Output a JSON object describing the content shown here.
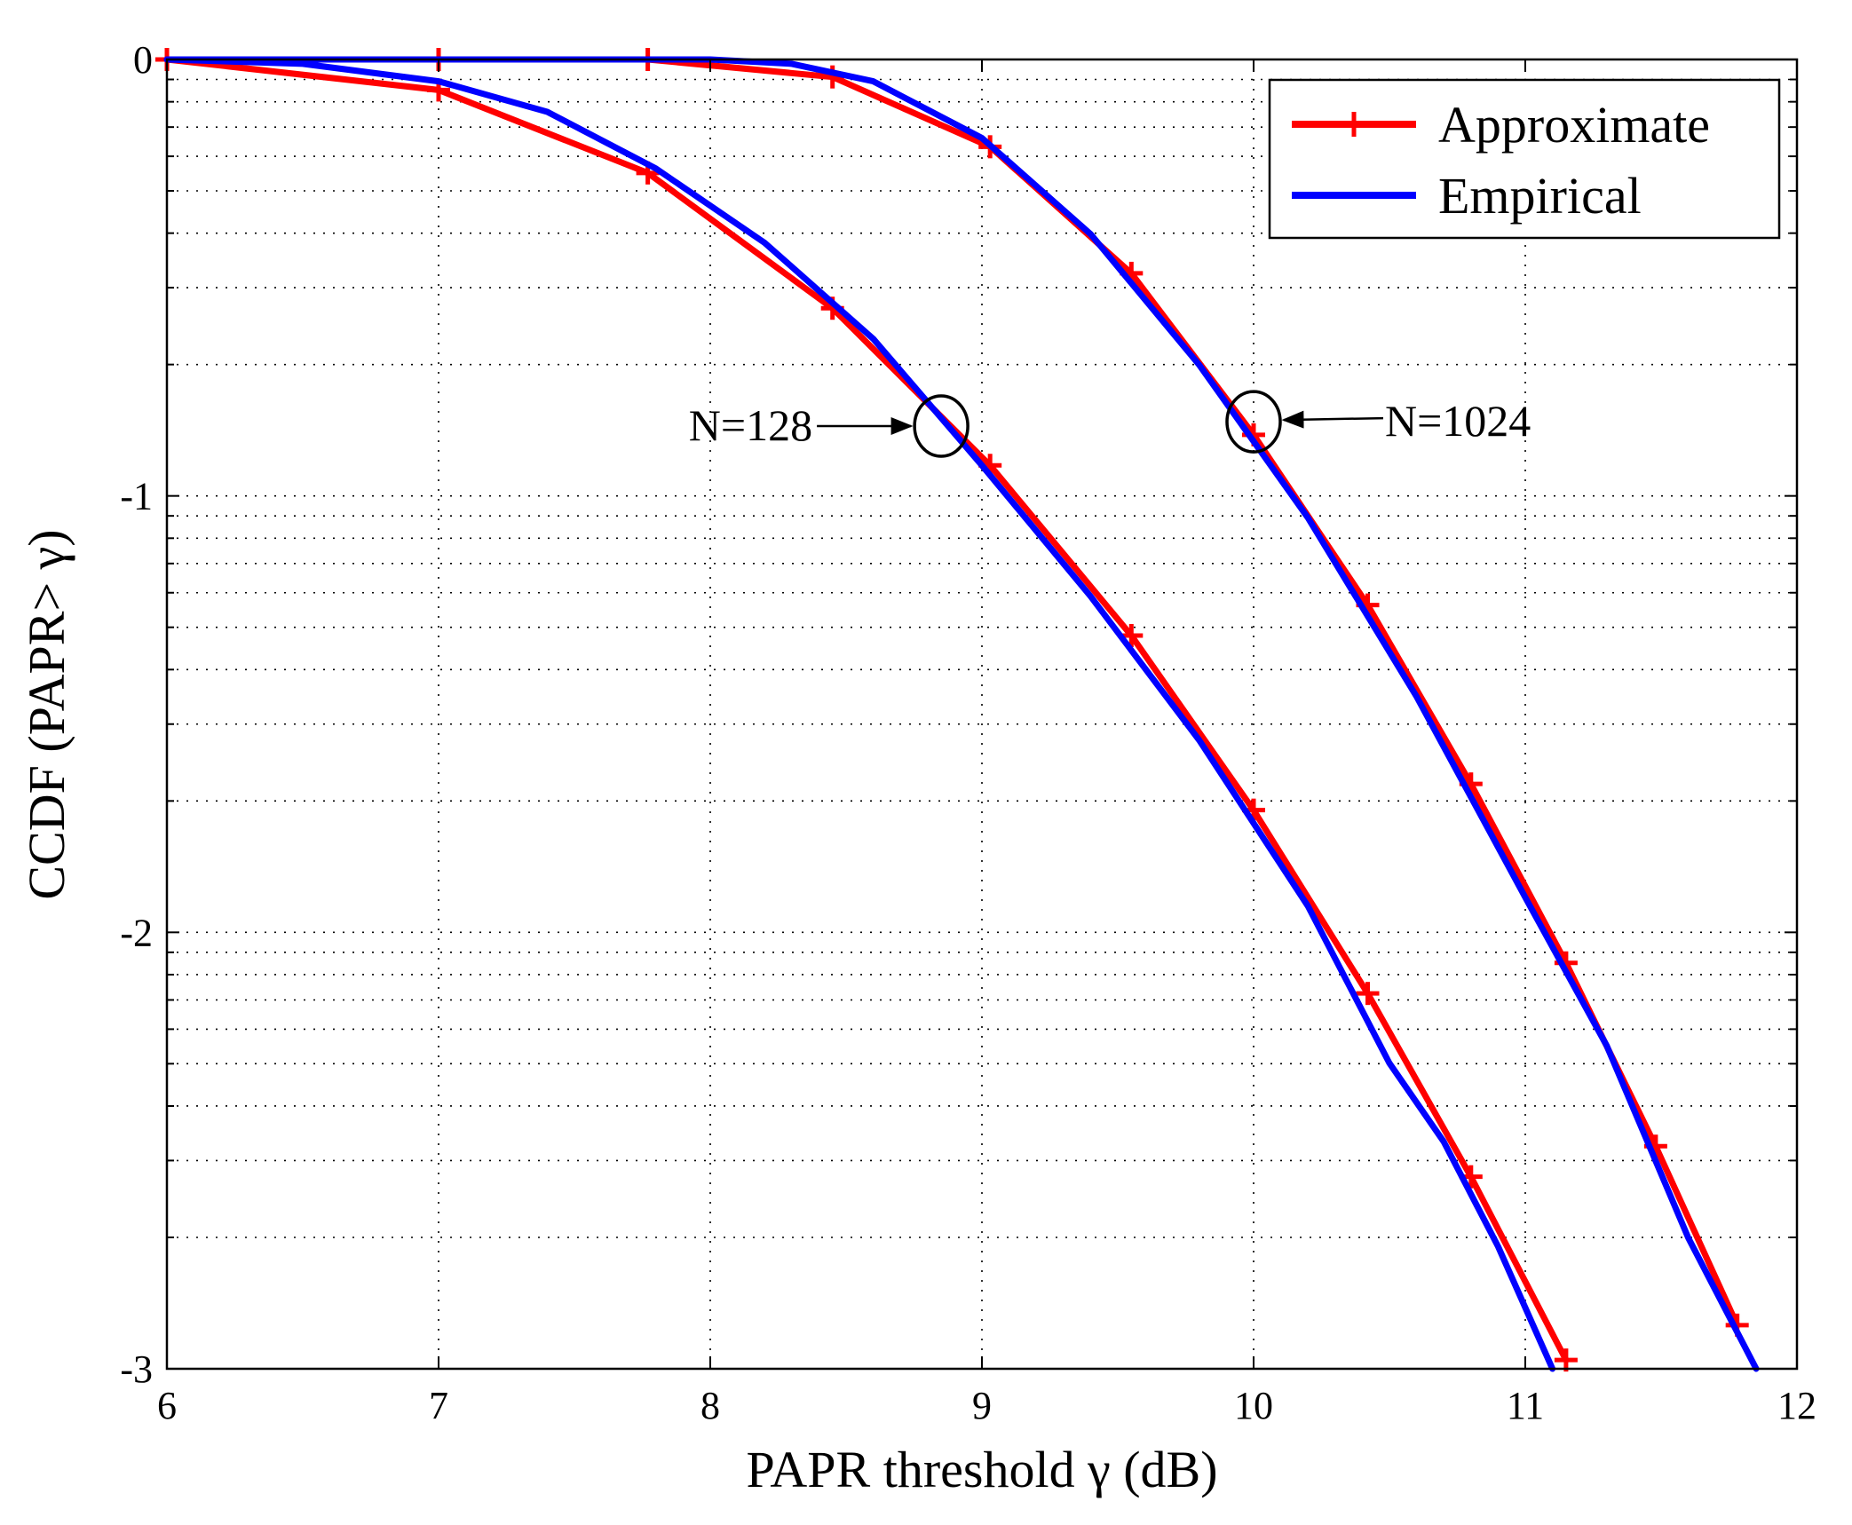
{
  "chart_data": {
    "type": "line",
    "title": "",
    "xlabel": "PAPR threshold γ  (dB)",
    "ylabel": "CCDF (PAPR> γ)",
    "xlim": [
      6,
      12
    ],
    "ylim": [
      -3,
      0
    ],
    "yscale": "log10",
    "xticks": [
      6,
      7,
      8,
      9,
      10,
      11,
      12
    ],
    "xtick_labels": [
      "6",
      "7",
      "8",
      "9",
      "10",
      "11",
      "12"
    ],
    "yticks": [
      -3,
      -2,
      -1,
      0
    ],
    "ytick_labels": [
      "-3",
      "-2",
      "-1",
      "0"
    ],
    "grid": true,
    "legend_position": "top-right",
    "legend": [
      "Approximate",
      "Empirical"
    ],
    "colors": {
      "approximate": "#ff0000",
      "empirical": "#0000ff"
    },
    "series": [
      {
        "name": "Approximate",
        "group": "N=128",
        "marker": "plus",
        "x": [
          6.0,
          7.0,
          7.77,
          8.45,
          9.03,
          9.55,
          10.0,
          10.42,
          10.8,
          11.15
        ],
        "y": [
          0.0,
          -0.07,
          -0.26,
          -0.57,
          -0.93,
          -1.32,
          -1.72,
          -2.14,
          -2.56,
          -2.98
        ]
      },
      {
        "name": "Empirical",
        "group": "N=128",
        "marker": "none",
        "x": [
          6.0,
          6.5,
          7.0,
          7.4,
          7.8,
          8.2,
          8.6,
          9.0,
          9.4,
          9.8,
          10.2,
          10.5,
          10.7,
          10.9,
          11.1
        ],
        "y": [
          0.0,
          -0.01,
          -0.05,
          -0.12,
          -0.25,
          -0.42,
          -0.64,
          -0.93,
          -1.23,
          -1.56,
          -1.94,
          -2.3,
          -2.48,
          -2.72,
          -3.0
        ]
      },
      {
        "name": "Approximate",
        "group": "N=1024",
        "marker": "plus",
        "x": [
          6.0,
          7.0,
          7.77,
          8.45,
          9.03,
          9.55,
          10.0,
          10.42,
          10.8,
          11.15,
          11.48,
          11.78
        ],
        "y": [
          0.0,
          0.0,
          0.0,
          -0.04,
          -0.2,
          -0.49,
          -0.86,
          -1.25,
          -1.66,
          -2.07,
          -2.49,
          -2.9
        ]
      },
      {
        "name": "Empirical",
        "group": "N=1024",
        "marker": "none",
        "x": [
          6.0,
          8.0,
          8.3,
          8.6,
          9.0,
          9.4,
          9.8,
          10.2,
          10.6,
          11.0,
          11.3,
          11.6,
          11.85
        ],
        "y": [
          0.0,
          0.0,
          -0.01,
          -0.05,
          -0.18,
          -0.4,
          -0.7,
          -1.05,
          -1.46,
          -1.92,
          -2.26,
          -2.7,
          -3.0
        ]
      }
    ],
    "annotations": [
      {
        "text": "N=128",
        "target": {
          "x": 8.85,
          "y": -0.84
        }
      },
      {
        "text": "N=1024",
        "target": {
          "x": 10.0,
          "y": -0.83
        }
      }
    ]
  }
}
